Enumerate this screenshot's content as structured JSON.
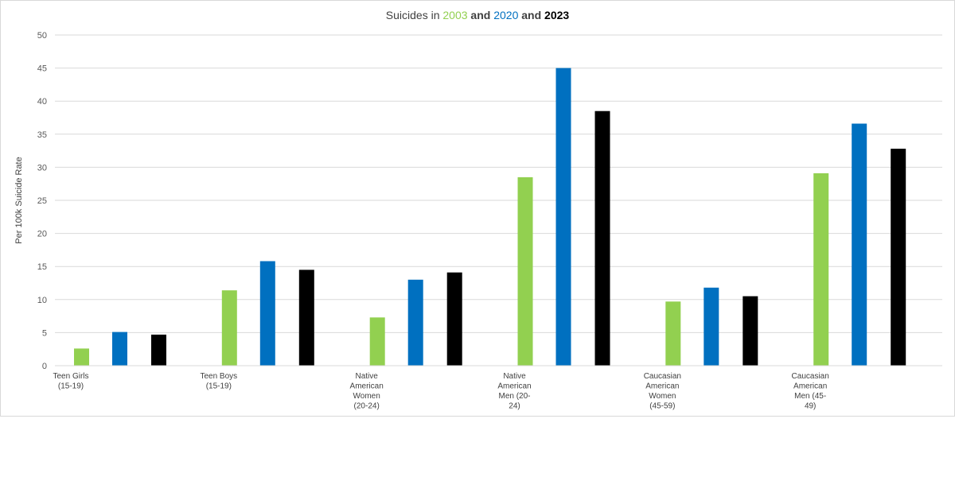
{
  "chart_data": {
    "type": "bar",
    "title_parts": [
      {
        "text": "Suicides in ",
        "color": "#404040",
        "bold": false
      },
      {
        "text": "2003",
        "color": "#92d050",
        "bold": false
      },
      {
        "text": " and ",
        "color": "#404040",
        "bold": true
      },
      {
        "text": "2020",
        "color": "#0070c0",
        "bold": false
      },
      {
        "text": " and ",
        "color": "#404040",
        "bold": true
      },
      {
        "text": "2023",
        "color": "#000000",
        "bold": true
      }
    ],
    "ylabel": "Per 100k Suicide Rate",
    "xlabel": "",
    "ylim": [
      0,
      50
    ],
    "yticks": [
      0,
      5,
      10,
      15,
      20,
      25,
      30,
      35,
      40,
      45,
      50
    ],
    "grid": true,
    "categories": [
      [
        "Teen Girls",
        "(15-19)"
      ],
      [
        "Teen Boys",
        "(15-19)"
      ],
      [
        "Native",
        "American",
        "Women",
        "(20-24)"
      ],
      [
        "Native",
        "American",
        "Men (20-",
        "24)"
      ],
      [
        "Caucasian",
        "American",
        "Women",
        "(45-59)"
      ],
      [
        "Caucasian",
        "American",
        "Men (45-",
        "49)"
      ]
    ],
    "series": [
      {
        "name": "2003",
        "color": "#92d050",
        "values": [
          2.6,
          11.4,
          7.3,
          28.5,
          9.7,
          29.1
        ]
      },
      {
        "name": "2020",
        "color": "#0070c0",
        "values": [
          5.1,
          15.8,
          13.0,
          45.0,
          11.8,
          36.6
        ]
      },
      {
        "name": "2023",
        "color": "#000000",
        "values": [
          4.7,
          14.5,
          14.1,
          38.5,
          10.5,
          32.8
        ]
      }
    ]
  }
}
